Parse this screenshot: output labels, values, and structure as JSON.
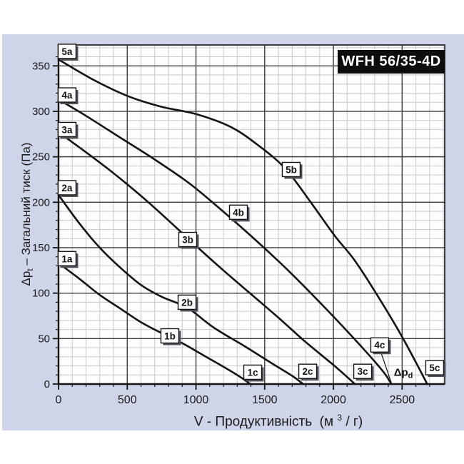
{
  "chart_data": {
    "type": "line",
    "title": "WFH 56/35-4D",
    "x_axis": {
      "title_parts": {
        "pre": "V - Продуктивність  (м ",
        "sup": "3",
        "rest": " / г)"
      },
      "min": 0,
      "max": 2810,
      "minor_step": 100,
      "major_step": 500,
      "tick_values": [
        0,
        500,
        1000,
        1500,
        2000,
        2500
      ],
      "tick_labels": [
        "0",
        "500",
        "1000",
        "1500",
        "2000",
        "2500"
      ],
      "unit": "м3/г"
    },
    "y_axis": {
      "title_parts": {
        "pre": "Δp",
        "sub": "t",
        "rest": " – Загальний тиск (Па)"
      },
      "min": 0,
      "max": 373,
      "minor_step": 10,
      "major_step": 50,
      "tick_values": [
        0,
        50,
        100,
        150,
        200,
        250,
        300,
        350
      ],
      "tick_labels": [
        "0",
        "50",
        "100",
        "150",
        "200",
        "250",
        "300",
        "350"
      ],
      "unit": "Па"
    },
    "grid": "on",
    "legend": "none",
    "series": [
      {
        "name": "curve-1",
        "start_label": "1a",
        "mid_label": "1b",
        "end_label": "1c",
        "points": [
          [
            0,
            133
          ],
          [
            150,
            116
          ],
          [
            300,
            98
          ],
          [
            450,
            83
          ],
          [
            600,
            68
          ],
          [
            750,
            56
          ],
          [
            900,
            45
          ],
          [
            1050,
            32
          ],
          [
            1200,
            19
          ],
          [
            1320,
            8
          ],
          [
            1395,
            0
          ]
        ]
      },
      {
        "name": "curve-2",
        "start_label": "2a",
        "mid_label": "2b",
        "end_label": "2c",
        "points": [
          [
            0,
            208
          ],
          [
            150,
            177
          ],
          [
            300,
            150
          ],
          [
            450,
            128
          ],
          [
            600,
            109
          ],
          [
            750,
            96
          ],
          [
            936,
            84
          ],
          [
            1130,
            62
          ],
          [
            1350,
            42
          ],
          [
            1550,
            23
          ],
          [
            1700,
            9
          ],
          [
            1780,
            0
          ]
        ]
      },
      {
        "name": "curve-3",
        "start_label": "3a",
        "mid_label": "3b",
        "end_label": "3c",
        "points": [
          [
            0,
            277
          ],
          [
            200,
            255
          ],
          [
            400,
            232
          ],
          [
            600,
            207
          ],
          [
            800,
            180
          ],
          [
            1000,
            152
          ],
          [
            1200,
            125
          ],
          [
            1400,
            99
          ],
          [
            1600,
            73
          ],
          [
            1800,
            46
          ],
          [
            2000,
            21
          ],
          [
            2157,
            0
          ]
        ]
      },
      {
        "name": "curve-4",
        "start_label": "4a",
        "mid_label": "4b",
        "end_label": "4c",
        "points": [
          [
            0,
            313
          ],
          [
            200,
            295
          ],
          [
            450,
            271
          ],
          [
            700,
            247
          ],
          [
            950,
            221
          ],
          [
            1150,
            196
          ],
          [
            1400,
            163
          ],
          [
            1650,
            128
          ],
          [
            1900,
            90
          ],
          [
            2150,
            50
          ],
          [
            2350,
            16
          ],
          [
            2423,
            0
          ]
        ]
      },
      {
        "name": "curve-5",
        "start_label": "5a",
        "mid_label": "5b",
        "end_label": "5c",
        "points": [
          [
            0,
            357
          ],
          [
            250,
            335
          ],
          [
            500,
            317
          ],
          [
            750,
            305
          ],
          [
            1000,
            297
          ],
          [
            1250,
            283
          ],
          [
            1450,
            263
          ],
          [
            1650,
            237
          ],
          [
            1835,
            200
          ],
          [
            2010,
            163
          ],
          [
            2150,
            137
          ],
          [
            2310,
            100
          ],
          [
            2500,
            52
          ],
          [
            2683,
            0
          ]
        ]
      }
    ],
    "curve_labels": [
      {
        "text": "1a",
        "x": 62,
        "y": 138
      },
      {
        "text": "2a",
        "x": 62,
        "y": 216
      },
      {
        "text": "3a",
        "x": 62,
        "y": 280
      },
      {
        "text": "4a",
        "x": 62,
        "y": 318
      },
      {
        "text": "5a",
        "x": 62,
        "y": 366
      },
      {
        "text": "1b",
        "x": 810,
        "y": 53
      },
      {
        "text": "2b",
        "x": 935,
        "y": 90
      },
      {
        "text": "3b",
        "x": 940,
        "y": 159
      },
      {
        "text": "4b",
        "x": 1309,
        "y": 189
      },
      {
        "text": "5b",
        "x": 1693,
        "y": 236
      },
      {
        "text": "1c",
        "x": 1413,
        "y": 13
      },
      {
        "text": "2c",
        "x": 1813,
        "y": 14
      },
      {
        "text": "3c",
        "x": 2213,
        "y": 14
      },
      {
        "text": "4c",
        "x": 2337,
        "y": 43
      },
      {
        "text": "5c",
        "x": 2737,
        "y": 18
      }
    ],
    "annotation": {
      "pre": "Δp",
      "sub": "d",
      "x": 2509,
      "y": 13
    },
    "pointer_4c": {
      "x1": 2350,
      "y1": 33,
      "x2": 2420,
      "y2": 2
    }
  },
  "colors": {
    "panel": "#cfd5e8",
    "plot_bg": "#fdfdfe",
    "grid_minor": "#c6c8ce",
    "grid_major": "#3c3c3e",
    "ink": "#141414",
    "text": "#1a1a1a",
    "badge_bg": "#0d0d0d",
    "badge_text": "#ffffff",
    "box_fill": "#ffffff",
    "box_shadow": "#50525c"
  }
}
